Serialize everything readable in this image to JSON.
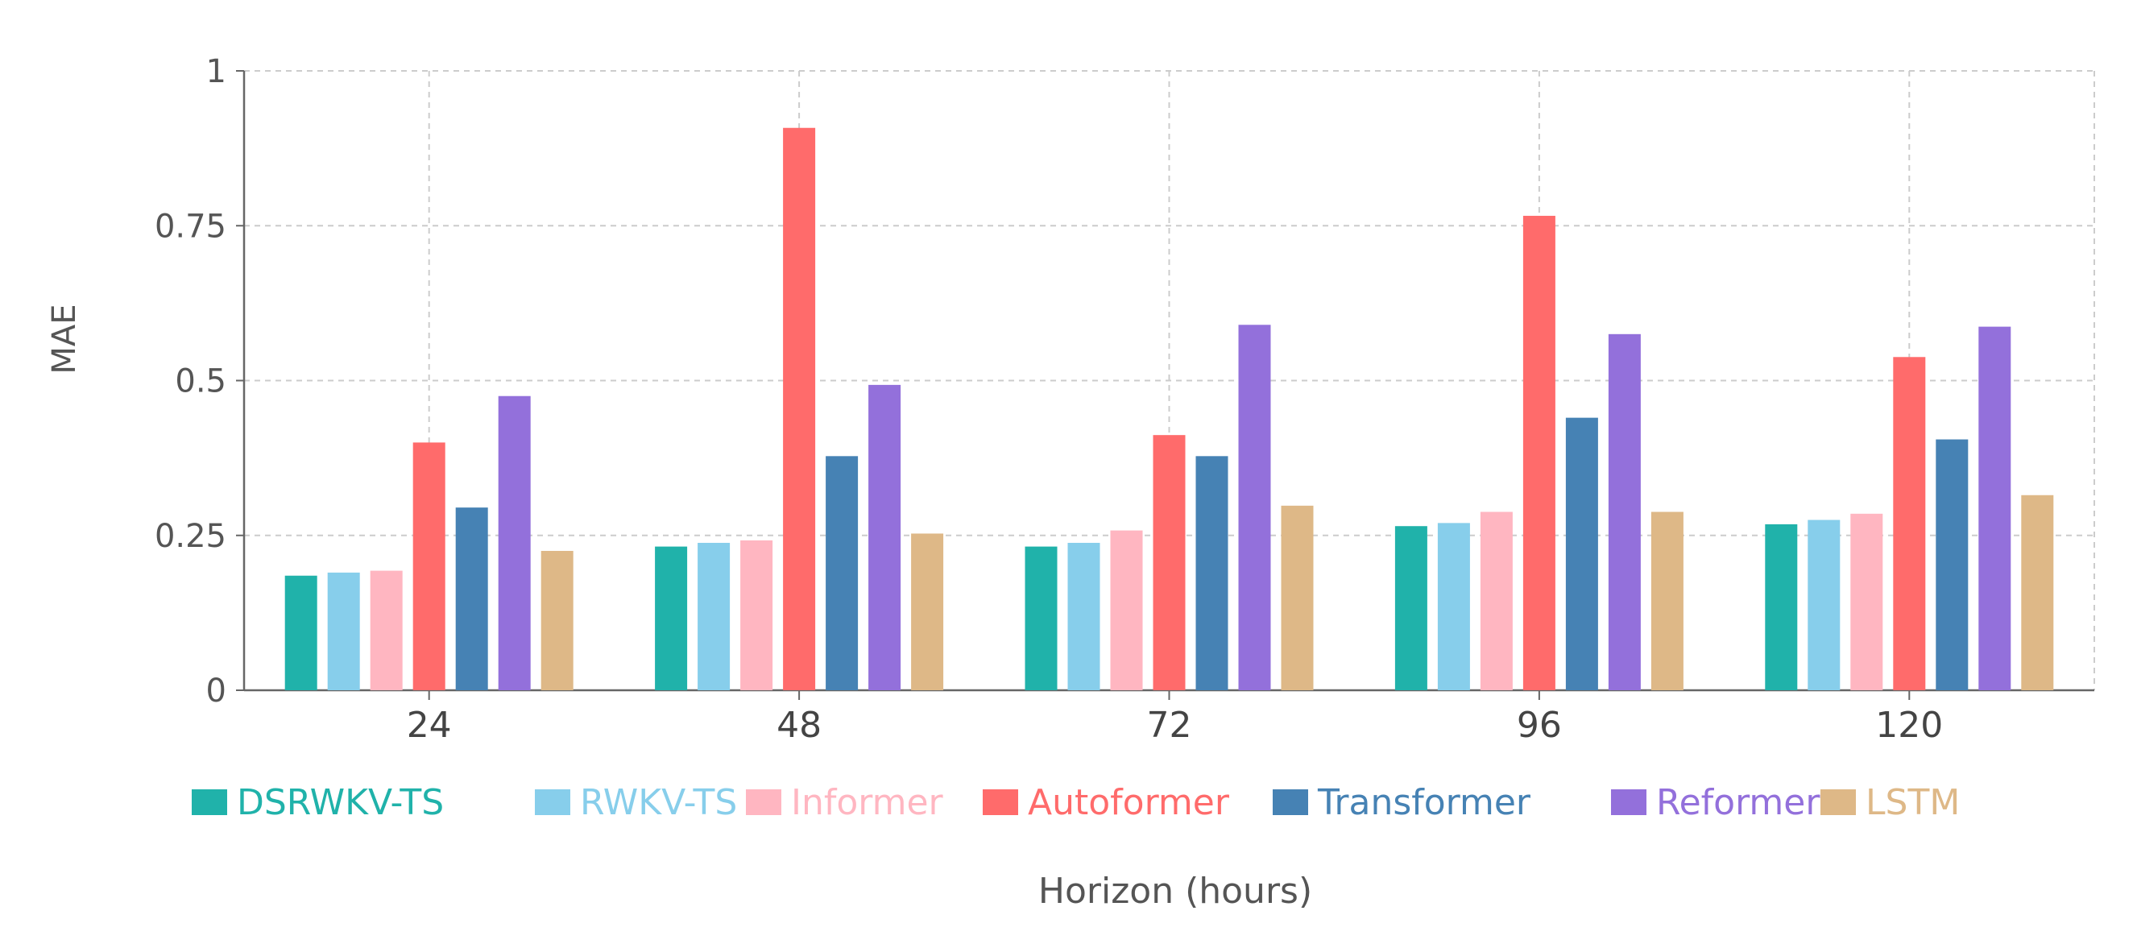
{
  "chart_data": {
    "type": "bar",
    "title": "",
    "xlabel": "Horizon (hours)",
    "ylabel": "MAE",
    "categories": [
      "24",
      "48",
      "72",
      "96",
      "120"
    ],
    "ylim": [
      0,
      1
    ],
    "yticks": [
      0,
      0.25,
      0.5,
      0.75,
      1
    ],
    "ytick_labels": [
      "0",
      "0.25",
      "0.5",
      "0.75",
      "1"
    ],
    "grid": true,
    "legend_position": "bottom",
    "series": [
      {
        "name": "DSRWKV-TS",
        "color": "#20b2aa",
        "values": [
          0.185,
          0.232,
          0.232,
          0.265,
          0.268
        ]
      },
      {
        "name": "RWKV-TS",
        "color": "#87ceeb",
        "values": [
          0.19,
          0.238,
          0.238,
          0.27,
          0.275
        ]
      },
      {
        "name": "Informer",
        "color": "#ffb6c1",
        "values": [
          0.193,
          0.242,
          0.258,
          0.288,
          0.285
        ]
      },
      {
        "name": "Autoformer",
        "color": "#ff6b6b",
        "values": [
          0.4,
          0.908,
          0.412,
          0.766,
          0.538
        ]
      },
      {
        "name": "Transformer",
        "color": "#4682b4",
        "values": [
          0.295,
          0.378,
          0.378,
          0.44,
          0.405
        ]
      },
      {
        "name": "Reformer",
        "color": "#9370db",
        "values": [
          0.475,
          0.493,
          0.59,
          0.575,
          0.587
        ]
      },
      {
        "name": "LSTM",
        "color": "#deb887",
        "values": [
          0.225,
          0.253,
          0.298,
          0.288,
          0.315
        ]
      }
    ]
  }
}
